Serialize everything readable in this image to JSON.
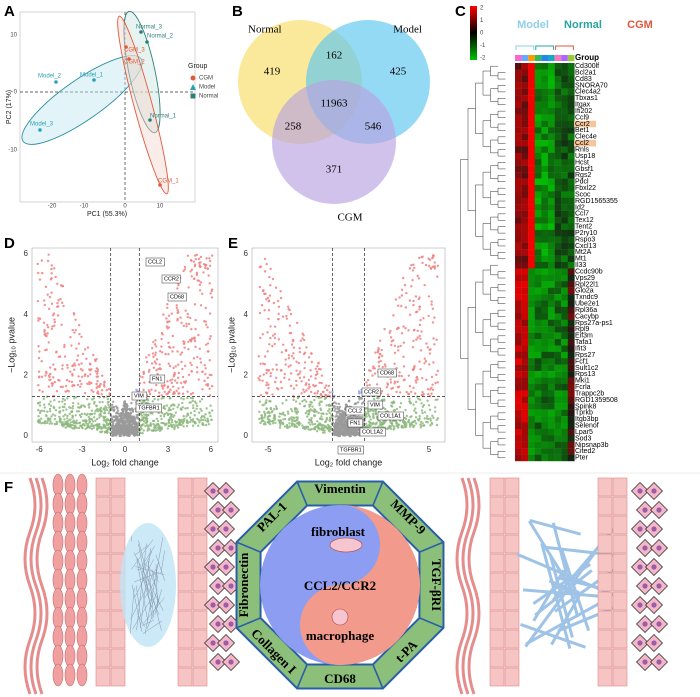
{
  "panel_labels": [
    "A",
    "B",
    "C",
    "D",
    "E",
    "F"
  ],
  "pca": {
    "xlabel": "PC1 (55.3%)",
    "ylabel": "PC2 (17%)",
    "xticks": [
      "-20",
      "-10",
      "0",
      "10"
    ],
    "yticks": [
      "10",
      "0",
      "-10"
    ],
    "legend_title": "Group",
    "groups": [
      "CGM",
      "Model",
      "Normal"
    ],
    "points": [
      "Model_2",
      "Model_1",
      "Model_3",
      "Normal_3",
      "Normal_2",
      "CGM_3",
      "CGM_2",
      "Normal_1",
      "CGM_1"
    ]
  },
  "venn": {
    "sets": [
      "Normal",
      "Model",
      "CGM"
    ],
    "regions": [
      "419",
      "162",
      "425",
      "11963",
      "258",
      "546",
      "371"
    ]
  },
  "heatmap": {
    "groups": [
      "Model",
      "Normal",
      "CGM"
    ],
    "legend_title": "Group",
    "scale": [
      "2",
      "1",
      "0",
      "-1",
      "-2"
    ],
    "genes": [
      "Cd300lf",
      "Bcl2a1",
      "Cd83",
      "SNORA70",
      "Clec4a2",
      "Tbxas1",
      "Itgax",
      "Ifi202",
      "Ccl9",
      "Ccr2",
      "Bet1",
      "Clec4e",
      "Ccl2",
      "Rnls",
      "Usp18",
      "Hcst",
      "Gbsf1",
      "Rgs2",
      "Pdcl",
      "Fbxl22",
      "Scoc",
      "RGD1565355",
      "Id2",
      "Ccl7",
      "Tex12",
      "Tent2",
      "P2ry10",
      "Rspo3",
      "Cxcl13",
      "Mt2A",
      "Mt1",
      "Il33",
      "Ccdc90b",
      "Vps29",
      "Rpl22l1",
      "Glo2a",
      "Txndc9",
      "Ube2e1",
      "Rpl36a",
      "Cacybp",
      "Rps27a-ps1",
      "Rpl9",
      "Eif3m",
      "Tafa1",
      "Ifit3",
      "Rps27",
      "Fcf1",
      "Sult1c2",
      "Rps13",
      "Mki1",
      "Fcrla",
      "Trappc2b",
      "RGD1359508",
      "Spink8",
      "Tprkb",
      "Itgb3bp",
      "Selenof",
      "Lpar5",
      "Sod3",
      "Nipsnap3b",
      "Cited2",
      "Pter"
    ]
  },
  "volcano_d": {
    "xlabel": "Log₂ fold change",
    "ylabel": "−Log₁₀ pvalue",
    "xticks": [
      "-6",
      "-3",
      "0",
      "3",
      "6"
    ],
    "yticks": [
      "0",
      "2",
      "4",
      "6"
    ],
    "genes": [
      "CCL2",
      "CCR2",
      "CD68",
      "FN1",
      "VIM",
      "TGFBR1"
    ]
  },
  "volcano_e": {
    "xlabel": "Log₂ fold change",
    "ylabel": "−Log₁₀ pvalue",
    "xticks": [
      "-5",
      "0",
      "5"
    ],
    "yticks": [
      "0",
      "2",
      "4",
      "6"
    ],
    "genes": [
      "CD68",
      "CCR2",
      "VIM",
      "COL1A1",
      "CCL2",
      "FN1",
      "COL1A2",
      "TGFBR1"
    ]
  },
  "diagram": {
    "ring": [
      "Vimentin",
      "MMP-9",
      "TGF-βRI",
      "t-PA",
      "CD68",
      "Collagen I",
      "Fibronectin",
      "PAL-1"
    ],
    "center": [
      "fibroblast",
      "CCL2/CCR2",
      "macrophage"
    ]
  }
}
